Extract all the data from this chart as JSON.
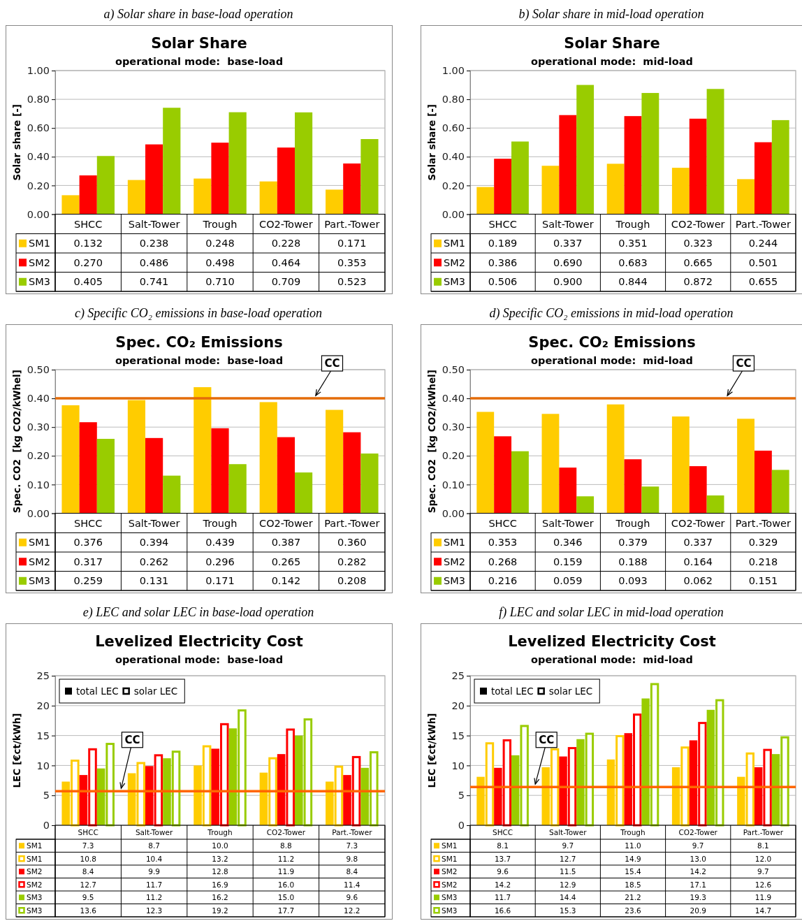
{
  "chart_data": [
    {
      "type": "bar",
      "title": "Solar Share",
      "subtitle": "operational mode:  base-load",
      "ylabel": "Solar share [-]",
      "annotations": [
        "a) Solar share in base-load operation"
      ],
      "categories": [
        "SHCC",
        "Salt-Tower",
        "Trough",
        "CO2-Tower",
        "Part.-Tower"
      ],
      "series": [
        {
          "name": "SM1",
          "color": "#ffcc00",
          "values": [
            0.132,
            0.238,
            0.248,
            0.228,
            0.171
          ],
          "value_labels": [
            "0.132",
            "0.238",
            "0.248",
            "0.228",
            "0.171"
          ]
        },
        {
          "name": "SM2",
          "color": "#ff0000",
          "values": [
            0.27,
            0.486,
            0.498,
            0.464,
            0.353
          ],
          "value_labels": [
            "0.270",
            "0.486",
            "0.498",
            "0.464",
            "0.353"
          ]
        },
        {
          "name": "SM3",
          "color": "#99cc00",
          "values": [
            0.405,
            0.741,
            0.71,
            0.709,
            0.523
          ],
          "value_labels": [
            "0.405",
            "0.741",
            "0.710",
            "0.709",
            "0.523"
          ]
        }
      ],
      "ylim": [
        0,
        1
      ],
      "yticks": [
        {
          "value": 0,
          "label": "0.00"
        },
        {
          "value": 0.2,
          "label": "0.20"
        },
        {
          "value": 0.4,
          "label": "0.40"
        },
        {
          "value": 0.6,
          "label": "0.60"
        },
        {
          "value": 0.8,
          "label": "0.80"
        },
        {
          "value": 1,
          "label": "1.00"
        }
      ],
      "grid": "y",
      "legend": "bottom"
    },
    {
      "type": "bar",
      "title": "Solar Share",
      "subtitle": "operational mode:  mid-load",
      "ylabel": "Solar share [-]",
      "annotations": [
        "b) Solar share in mid-load operation"
      ],
      "categories": [
        "SHCC",
        "Salt-Tower",
        "Trough",
        "CO2-Tower",
        "Part.-Tower"
      ],
      "series": [
        {
          "name": "SM1",
          "color": "#ffcc00",
          "values": [
            0.189,
            0.337,
            0.351,
            0.323,
            0.244
          ],
          "value_labels": [
            "0.189",
            "0.337",
            "0.351",
            "0.323",
            "0.244"
          ]
        },
        {
          "name": "SM2",
          "color": "#ff0000",
          "values": [
            0.386,
            0.69,
            0.683,
            0.665,
            0.501
          ],
          "value_labels": [
            "0.386",
            "0.690",
            "0.683",
            "0.665",
            "0.501"
          ]
        },
        {
          "name": "SM3",
          "color": "#99cc00",
          "values": [
            0.506,
            0.9,
            0.844,
            0.872,
            0.655
          ],
          "value_labels": [
            "0.506",
            "0.900",
            "0.844",
            "0.872",
            "0.655"
          ]
        }
      ],
      "ylim": [
        0,
        1
      ],
      "yticks": [
        {
          "value": 0,
          "label": "0.00"
        },
        {
          "value": 0.2,
          "label": "0.20"
        },
        {
          "value": 0.4,
          "label": "0.40"
        },
        {
          "value": 0.6,
          "label": "0.60"
        },
        {
          "value": 0.8,
          "label": "0.80"
        },
        {
          "value": 1,
          "label": "1.00"
        }
      ],
      "grid": "y",
      "legend": "bottom"
    },
    {
      "type": "bar",
      "title": "Spec. CO₂ Emissions",
      "subtitle": "operational mode:  base-load",
      "ylabel": "Spec. CO2  [kg CO2/kWhel]",
      "annotations": [
        "c) Specific CO₂ emissions in base-load operation"
      ],
      "categories": [
        "SHCC",
        "Salt-Tower",
        "Trough",
        "CO2-Tower",
        "Part.-Tower"
      ],
      "series": [
        {
          "name": "SM1",
          "color": "#ffcc00",
          "values": [
            0.376,
            0.394,
            0.439,
            0.387,
            0.36
          ],
          "value_labels": [
            "0.376",
            "0.394",
            "0.439",
            "0.387",
            "0.360"
          ]
        },
        {
          "name": "SM2",
          "color": "#ff0000",
          "values": [
            0.317,
            0.262,
            0.296,
            0.265,
            0.282
          ],
          "value_labels": [
            "0.317",
            "0.262",
            "0.296",
            "0.265",
            "0.282"
          ]
        },
        {
          "name": "SM3",
          "color": "#99cc00",
          "values": [
            0.259,
            0.131,
            0.171,
            0.142,
            0.208
          ],
          "value_labels": [
            "0.259",
            "0.131",
            "0.171",
            "0.142",
            "0.208"
          ]
        }
      ],
      "ylim": [
        0,
        0.5
      ],
      "yticks": [
        {
          "value": 0,
          "label": "0.00"
        },
        {
          "value": 0.1,
          "label": "0.10"
        },
        {
          "value": 0.2,
          "label": "0.20"
        },
        {
          "value": 0.3,
          "label": "0.30"
        },
        {
          "value": 0.4,
          "label": "0.40"
        },
        {
          "value": 0.5,
          "label": "0.50"
        }
      ],
      "grid": "y",
      "legend": "bottom",
      "ref_lines": [
        {
          "axis": "y",
          "value": 0.4,
          "label": "CC",
          "color": "#e46c0a"
        }
      ]
    },
    {
      "type": "bar",
      "title": "Spec. CO₂ Emissions",
      "subtitle": "operational mode:  mid-load",
      "ylabel": "Spec. CO2  [kg CO2/kWhel]",
      "annotations": [
        "d) Specific CO₂ emissions in mid-load operation"
      ],
      "categories": [
        "SHCC",
        "Salt-Tower",
        "Trough",
        "CO2-Tower",
        "Part.-Tower"
      ],
      "series": [
        {
          "name": "SM1",
          "color": "#ffcc00",
          "values": [
            0.353,
            0.346,
            0.379,
            0.337,
            0.329
          ],
          "value_labels": [
            "0.353",
            "0.346",
            "0.379",
            "0.337",
            "0.329"
          ]
        },
        {
          "name": "SM2",
          "color": "#ff0000",
          "values": [
            0.268,
            0.159,
            0.188,
            0.164,
            0.218
          ],
          "value_labels": [
            "0.268",
            "0.159",
            "0.188",
            "0.164",
            "0.218"
          ]
        },
        {
          "name": "SM3",
          "color": "#99cc00",
          "values": [
            0.216,
            0.059,
            0.093,
            0.062,
            0.151
          ],
          "value_labels": [
            "0.216",
            "0.059",
            "0.093",
            "0.062",
            "0.151"
          ]
        }
      ],
      "ylim": [
        0,
        0.5
      ],
      "yticks": [
        {
          "value": 0,
          "label": "0.00"
        },
        {
          "value": 0.1,
          "label": "0.10"
        },
        {
          "value": 0.2,
          "label": "0.20"
        },
        {
          "value": 0.3,
          "label": "0.30"
        },
        {
          "value": 0.4,
          "label": "0.40"
        },
        {
          "value": 0.5,
          "label": "0.50"
        }
      ],
      "grid": "y",
      "legend": "bottom",
      "ref_lines": [
        {
          "axis": "y",
          "value": 0.4,
          "label": "CC",
          "color": "#e46c0a"
        }
      ]
    },
    {
      "type": "bar",
      "title": "Levelized Electricity Cost",
      "subtitle": "operational mode:  base-load",
      "ylabel": "LEC [€ct/kWh]",
      "annotations": [
        "e) LEC and solar LEC in base-load operation",
        "total LEC",
        "solar LEC"
      ],
      "categories": [
        "SHCC",
        "Salt-Tower",
        "Trough",
        "CO2-Tower",
        "Part.-Tower"
      ],
      "series": [
        {
          "name": "SM1",
          "color": "#ffcc00",
          "values": [
            7.3,
            8.7,
            10.0,
            8.8,
            7.3
          ],
          "value_labels": [
            "7.3",
            "8.7",
            "10.0",
            "8.8",
            "7.3"
          ]
        },
        {
          "name": "SM1",
          "color": "#ffcc00",
          "values": [
            10.8,
            10.4,
            13.2,
            11.2,
            9.8
          ],
          "value_labels": [
            "10.8",
            "10.4",
            "13.2",
            "11.2",
            "9.8"
          ]
        },
        {
          "name": "SM2",
          "color": "#ff0000",
          "values": [
            8.4,
            9.9,
            12.8,
            11.9,
            8.4
          ],
          "value_labels": [
            "8.4",
            "9.9",
            "12.8",
            "11.9",
            "8.4"
          ]
        },
        {
          "name": "SM2",
          "color": "#ff0000",
          "values": [
            12.7,
            11.7,
            16.9,
            16.0,
            11.4
          ],
          "value_labels": [
            "12.7",
            "11.7",
            "16.9",
            "16.0",
            "11.4"
          ]
        },
        {
          "name": "SM3",
          "color": "#99cc00",
          "values": [
            9.5,
            11.2,
            16.2,
            15.0,
            9.6
          ],
          "value_labels": [
            "9.5",
            "11.2",
            "16.2",
            "15.0",
            "9.6"
          ]
        },
        {
          "name": "SM3",
          "color": "#99cc00",
          "values": [
            13.6,
            12.3,
            19.2,
            17.7,
            12.2
          ],
          "value_labels": [
            "13.6",
            "12.3",
            "19.2",
            "17.7",
            "12.2"
          ]
        }
      ],
      "ylim": [
        0,
        25
      ],
      "yticks": [
        0,
        5,
        10,
        15,
        20,
        25
      ],
      "grid": "y",
      "legend": "bottom",
      "ref_lines": [
        {
          "axis": "y",
          "value": 5.7,
          "label": "CC",
          "color": "#ff6600"
        }
      ]
    },
    {
      "type": "bar",
      "title": "Levelized Electricity Cost",
      "subtitle": "operational mode:  mid-load",
      "ylabel": "LEC [€ct/kWh]",
      "annotations": [
        "f) LEC and solar LEC in mid-load operation",
        "total LEC",
        "solar LEC"
      ],
      "categories": [
        "SHCC",
        "Salt-Tower",
        "Trough",
        "CO2-Tower",
        "Part.-Tower"
      ],
      "series": [
        {
          "name": "SM1",
          "color": "#ffcc00",
          "values": [
            8.1,
            9.7,
            11.0,
            9.7,
            8.1
          ],
          "value_labels": [
            "8.1",
            "9.7",
            "11.0",
            "9.7",
            "8.1"
          ]
        },
        {
          "name": "SM1",
          "color": "#ffcc00",
          "values": [
            13.7,
            12.7,
            14.9,
            13.0,
            12.0
          ],
          "value_labels": [
            "13.7",
            "12.7",
            "14.9",
            "13.0",
            "12.0"
          ]
        },
        {
          "name": "SM2",
          "color": "#ff0000",
          "values": [
            9.6,
            11.5,
            15.4,
            14.2,
            9.7
          ],
          "value_labels": [
            "9.6",
            "11.5",
            "15.4",
            "14.2",
            "9.7"
          ]
        },
        {
          "name": "SM2",
          "color": "#ff0000",
          "values": [
            14.2,
            12.9,
            18.5,
            17.1,
            12.6
          ],
          "value_labels": [
            "14.2",
            "12.9",
            "18.5",
            "17.1",
            "12.6"
          ]
        },
        {
          "name": "SM3",
          "color": "#99cc00",
          "values": [
            11.7,
            14.4,
            21.2,
            19.3,
            11.9
          ],
          "value_labels": [
            "11.7",
            "14.4",
            "21.2",
            "19.3",
            "11.9"
          ]
        },
        {
          "name": "SM3",
          "color": "#99cc00",
          "values": [
            16.6,
            15.3,
            23.6,
            20.9,
            14.7
          ],
          "value_labels": [
            "16.6",
            "15.3",
            "23.6",
            "20.9",
            "14.7"
          ]
        }
      ],
      "ylim": [
        0,
        25
      ],
      "yticks": [
        0,
        5,
        10,
        15,
        20,
        25
      ],
      "grid": "y",
      "legend": "bottom",
      "ref_lines": [
        {
          "axis": "y",
          "value": 6.4,
          "label": "CC",
          "color": "#ff6600"
        }
      ]
    }
  ]
}
